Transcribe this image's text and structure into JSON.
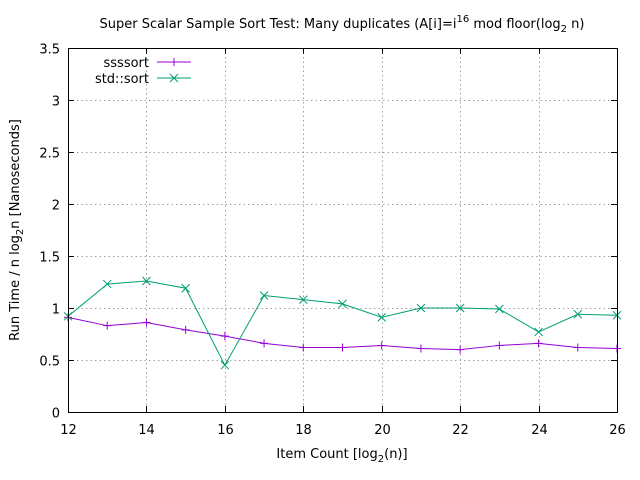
{
  "chart_data": {
    "type": "line",
    "title": {
      "text_before": "Super Scalar Sample Sort Test: Many duplicates (A[i]=i",
      "superscript": "16",
      "text_middle": " mod floor(log",
      "subscript": "2",
      "text_after": " n)"
    },
    "xlabel": {
      "text_before": "Item Count [log",
      "subscript": "2",
      "text_after": "(n)]"
    },
    "ylabel": {
      "text_before": "Run Time / n log",
      "subscript": "2",
      "text_after": "n [Nanoseconds]"
    },
    "xlim": [
      12,
      26
    ],
    "ylim": [
      0,
      3.5
    ],
    "x_ticks": [
      12,
      14,
      16,
      18,
      20,
      22,
      24,
      26
    ],
    "y_ticks": [
      0,
      0.5,
      1,
      1.5,
      2,
      2.5,
      3,
      3.5
    ],
    "y_tick_labels": [
      "0",
      "0.5",
      "1",
      "1.5",
      "2",
      "2.5",
      "3",
      "3.5"
    ],
    "grid": true,
    "legend_position": "top-left",
    "x": [
      12,
      13,
      14,
      15,
      16,
      17,
      18,
      19,
      20,
      21,
      22,
      23,
      24,
      25,
      26
    ],
    "series": [
      {
        "name": "ssssort",
        "color": "#9400d3",
        "marker": "plus",
        "values": [
          0.91,
          0.83,
          0.86,
          0.79,
          0.73,
          0.66,
          0.62,
          0.62,
          0.64,
          0.61,
          0.6,
          0.64,
          0.66,
          0.62,
          0.61
        ]
      },
      {
        "name": "std::sort",
        "color": "#009e73",
        "marker": "cross",
        "values": [
          0.92,
          1.23,
          1.26,
          1.19,
          0.45,
          1.12,
          1.08,
          1.04,
          0.91,
          1.0,
          1.0,
          0.99,
          0.77,
          0.94,
          0.93
        ]
      }
    ]
  }
}
